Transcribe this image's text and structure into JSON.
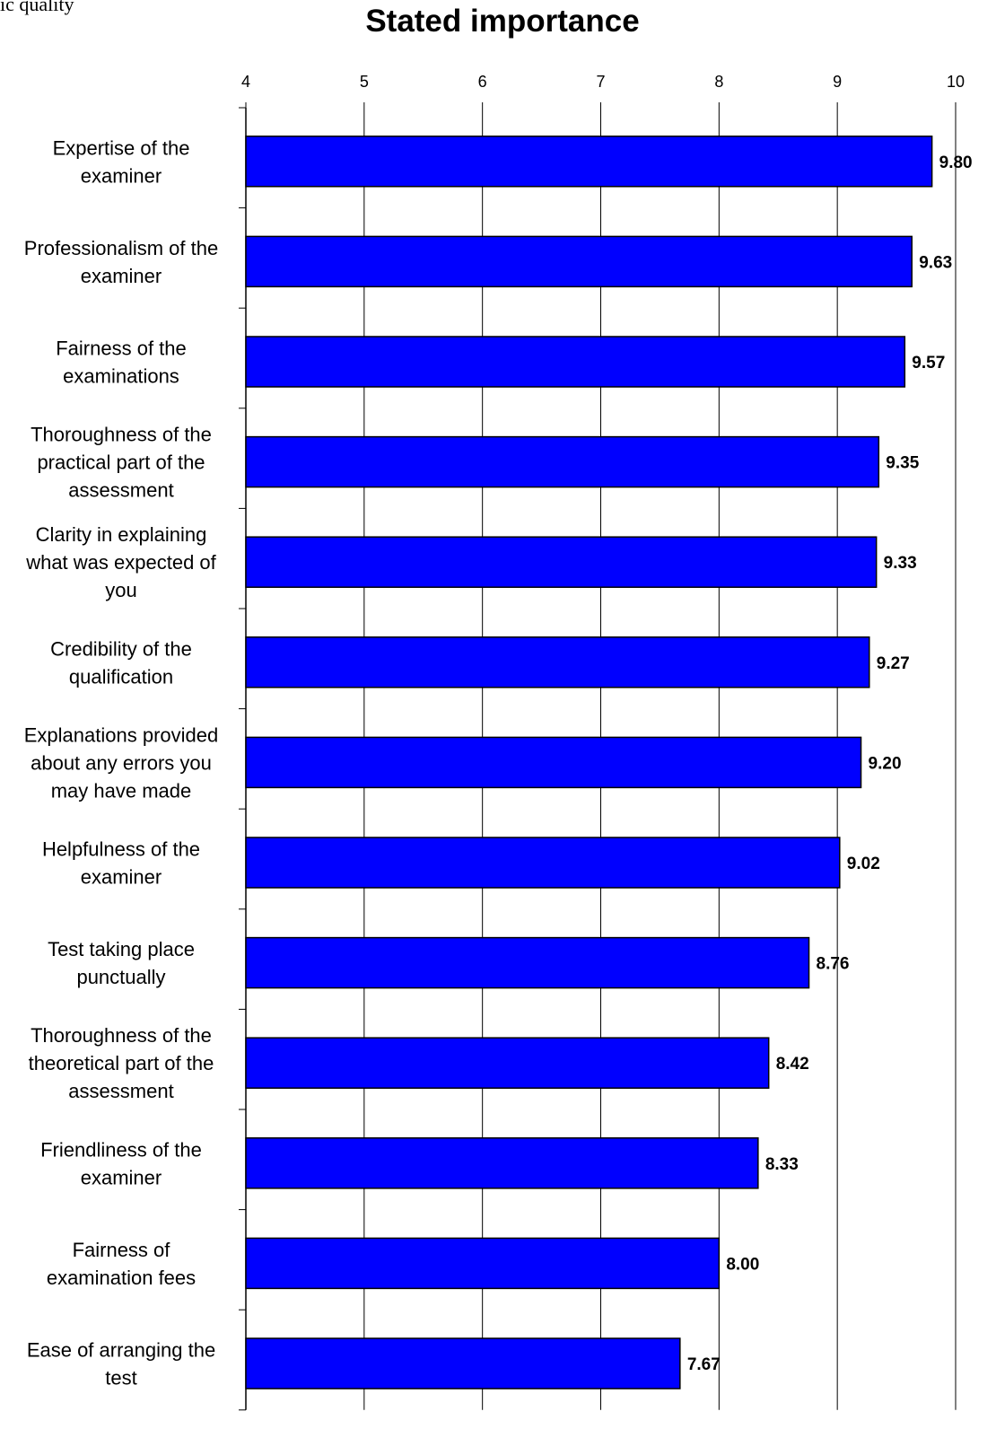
{
  "fragment_text": "ic quality",
  "chart_data": {
    "type": "bar",
    "orientation": "horizontal",
    "title": "Stated importance",
    "xlim": [
      4,
      10
    ],
    "x_ticks": [
      "4",
      "5",
      "6",
      "7",
      "8",
      "9",
      "10"
    ],
    "grid": true,
    "bar_color": "#0000FF",
    "data_labels": true,
    "categories": [
      [
        "Expertise of the",
        "examiner"
      ],
      [
        "Professionalism of the",
        "examiner"
      ],
      [
        "Fairness of the",
        "examinations"
      ],
      [
        "Thoroughness of the",
        "practical part of the",
        "assessment"
      ],
      [
        "Clarity in explaining",
        "what was expected of",
        "you"
      ],
      [
        "Credibility of the",
        "qualification"
      ],
      [
        "Explanations provided",
        "about any errors you",
        "may have made"
      ],
      [
        "Helpfulness of the",
        "examiner"
      ],
      [
        "Test taking place",
        "punctually"
      ],
      [
        "Thoroughness of the",
        "theoretical part of the",
        "assessment"
      ],
      [
        "Friendliness of the",
        "examiner"
      ],
      [
        "Fairness of",
        "examination fees"
      ],
      [
        "Ease of arranging the",
        "test"
      ]
    ],
    "values": [
      9.8,
      9.63,
      9.57,
      9.35,
      9.33,
      9.27,
      9.2,
      9.02,
      8.76,
      8.42,
      8.33,
      8.0,
      7.67
    ],
    "value_labels": [
      "9.80",
      "9.63",
      "9.57",
      "9.35",
      "9.33",
      "9.27",
      "9.20",
      "9.02",
      "8.76",
      "8.42",
      "8.33",
      "8.00",
      "7.67"
    ]
  }
}
